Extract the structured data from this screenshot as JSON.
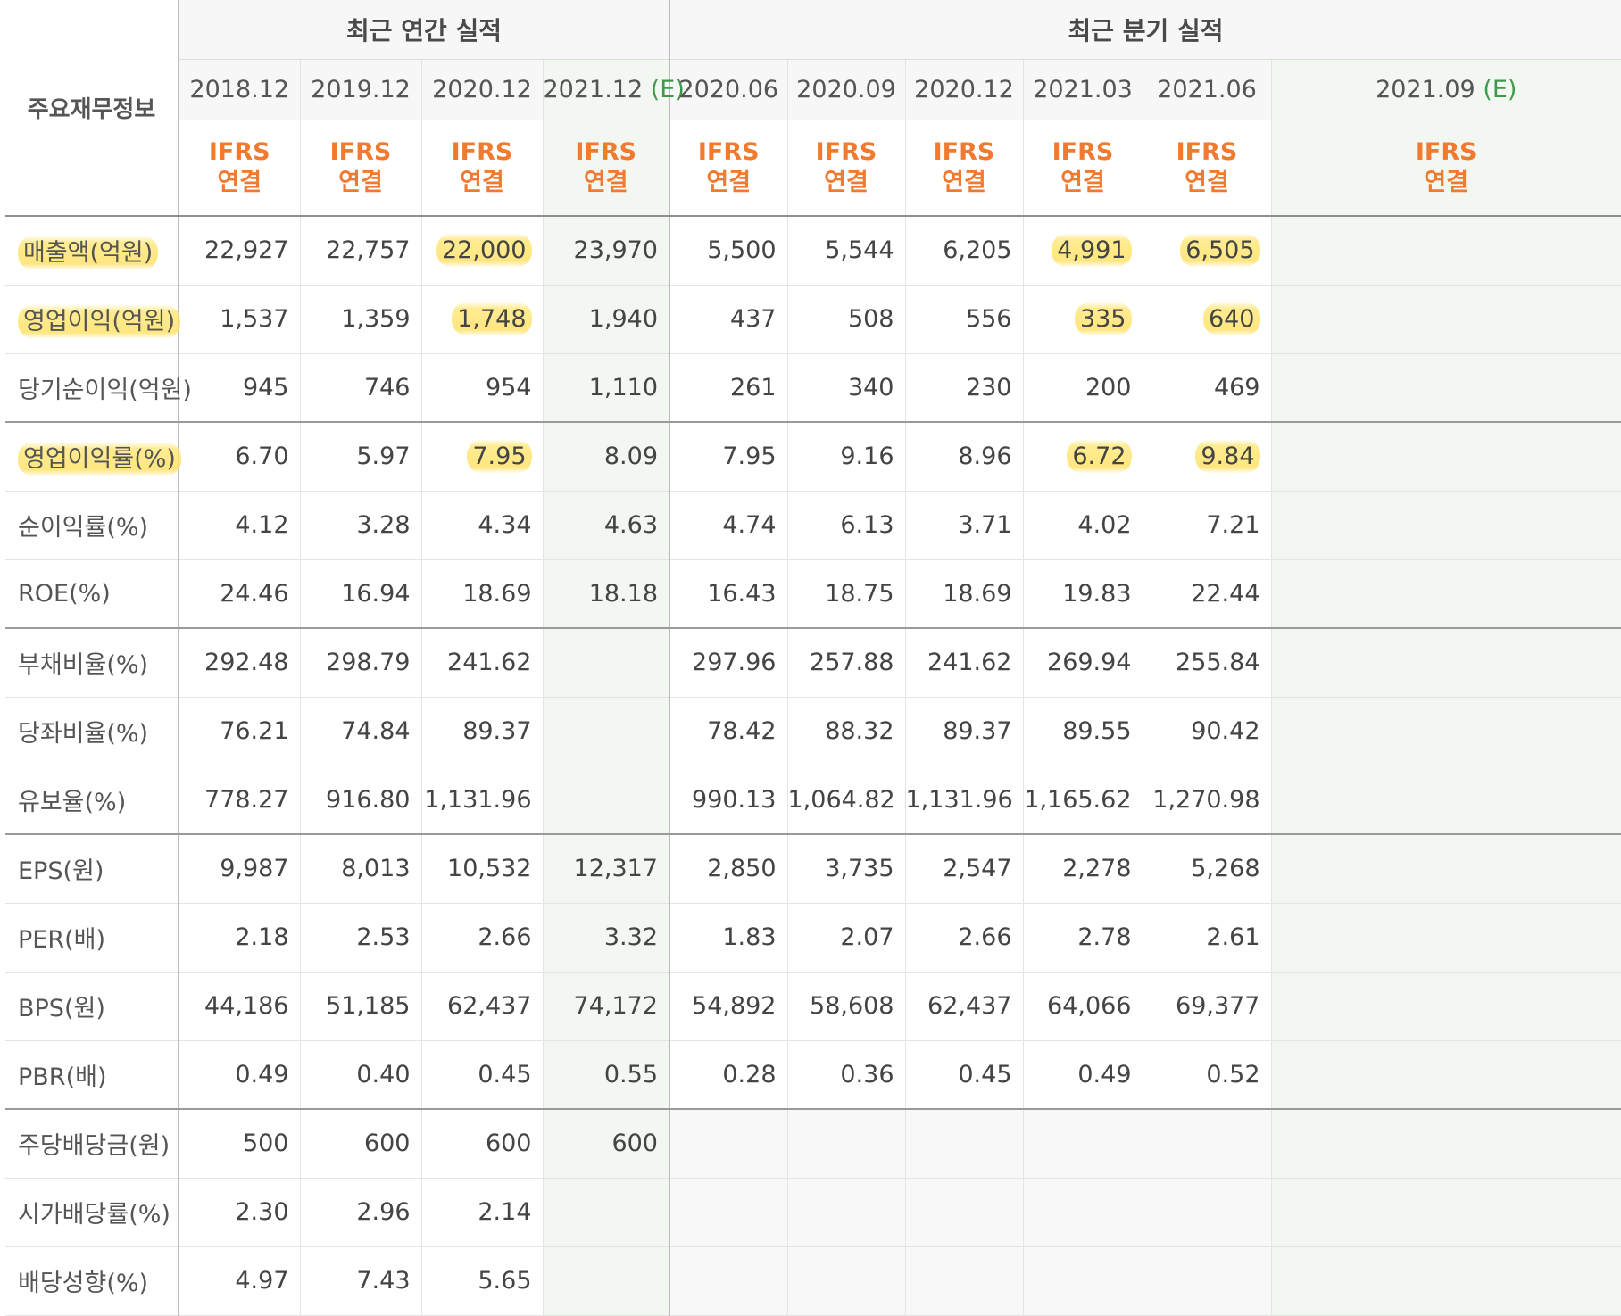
{
  "table": {
    "label_header": "주요재무정보",
    "annual_group": "최근 연간 실적",
    "quarter_group": "최근 분기 실적",
    "basis_line1": "IFRS",
    "basis_line2": "연결",
    "estimate_mark": "(E)",
    "annual_periods": [
      "2018.12",
      "2019.12",
      "2020.12",
      "2021.12"
    ],
    "quarter_periods": [
      "2020.06",
      "2020.09",
      "2020.12",
      "2021.03",
      "2021.06",
      "2021.09"
    ],
    "rows": [
      {
        "label": "매출액(억원)",
        "values": [
          "22,927",
          "22,757",
          "22,000",
          "23,970",
          "5,500",
          "5,544",
          "6,205",
          "4,991",
          "6,505",
          ""
        ]
      },
      {
        "label": "영업이익(억원)",
        "values": [
          "1,537",
          "1,359",
          "1,748",
          "1,940",
          "437",
          "508",
          "556",
          "335",
          "640",
          ""
        ]
      },
      {
        "label": "당기순이익(억원)",
        "values": [
          "945",
          "746",
          "954",
          "1,110",
          "261",
          "340",
          "230",
          "200",
          "469",
          ""
        ]
      },
      {
        "label": "영업이익률(%)",
        "values": [
          "6.70",
          "5.97",
          "7.95",
          "8.09",
          "7.95",
          "9.16",
          "8.96",
          "6.72",
          "9.84",
          ""
        ]
      },
      {
        "label": "순이익률(%)",
        "values": [
          "4.12",
          "3.28",
          "4.34",
          "4.63",
          "4.74",
          "6.13",
          "3.71",
          "4.02",
          "7.21",
          ""
        ]
      },
      {
        "label": "ROE(%)",
        "values": [
          "24.46",
          "16.94",
          "18.69",
          "18.18",
          "16.43",
          "18.75",
          "18.69",
          "19.83",
          "22.44",
          ""
        ]
      },
      {
        "label": "부채비율(%)",
        "values": [
          "292.48",
          "298.79",
          "241.62",
          "",
          "297.96",
          "257.88",
          "241.62",
          "269.94",
          "255.84",
          ""
        ]
      },
      {
        "label": "당좌비율(%)",
        "values": [
          "76.21",
          "74.84",
          "89.37",
          "",
          "78.42",
          "88.32",
          "89.37",
          "89.55",
          "90.42",
          ""
        ]
      },
      {
        "label": "유보율(%)",
        "values": [
          "778.27",
          "916.80",
          "1,131.96",
          "",
          "990.13",
          "1,064.82",
          "1,131.96",
          "1,165.62",
          "1,270.98",
          ""
        ]
      },
      {
        "label": "EPS(원)",
        "values": [
          "9,987",
          "8,013",
          "10,532",
          "12,317",
          "2,850",
          "3,735",
          "2,547",
          "2,278",
          "5,268",
          ""
        ]
      },
      {
        "label": "PER(배)",
        "values": [
          "2.18",
          "2.53",
          "2.66",
          "3.32",
          "1.83",
          "2.07",
          "2.66",
          "2.78",
          "2.61",
          ""
        ]
      },
      {
        "label": "BPS(원)",
        "values": [
          "44,186",
          "51,185",
          "62,437",
          "74,172",
          "54,892",
          "58,608",
          "62,437",
          "64,066",
          "69,377",
          ""
        ]
      },
      {
        "label": "PBR(배)",
        "values": [
          "0.49",
          "0.40",
          "0.45",
          "0.55",
          "0.28",
          "0.36",
          "0.45",
          "0.49",
          "0.52",
          ""
        ]
      },
      {
        "label": "주당배당금(원)",
        "values": [
          "500",
          "600",
          "600",
          "600",
          "",
          "",
          "",
          "",
          "",
          ""
        ]
      },
      {
        "label": "시가배당률(%)",
        "values": [
          "2.30",
          "2.96",
          "2.14",
          "",
          "",
          "",
          "",
          "",
          "",
          ""
        ]
      },
      {
        "label": "배당성향(%)",
        "values": [
          "4.97",
          "7.43",
          "5.65",
          "",
          "",
          "",
          "",
          "",
          "",
          ""
        ]
      }
    ],
    "group_end_rows": [
      2,
      5,
      8,
      12
    ],
    "empty_shaded_rows": [
      13,
      14,
      15
    ],
    "estimate_columns": [
      3,
      9
    ],
    "highlighted_rows": [
      0,
      1,
      3
    ],
    "highlighted_columns": [
      2,
      7,
      8
    ],
    "colors": {
      "basis_text": "#f07a30",
      "estimate_mark": "#3d9a4c",
      "estimate_bg": "#f2f8f1",
      "highlight": "#ffe46e"
    }
  }
}
